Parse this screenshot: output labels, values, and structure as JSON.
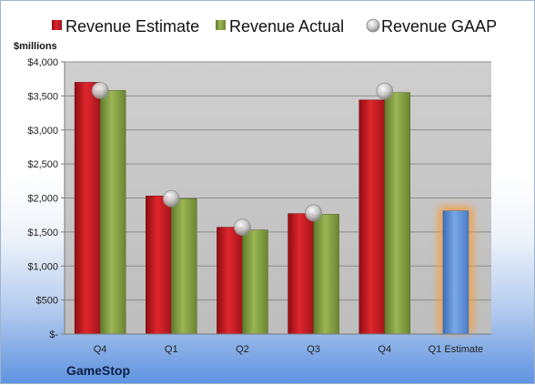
{
  "chart_data": {
    "type": "bar",
    "unit_label": "$millions",
    "company": "GameStop",
    "categories": [
      "Q4",
      "Q1",
      "Q2",
      "Q3",
      "Q4",
      "Q1 Estimate"
    ],
    "y_ticks": [
      "$-",
      "$500",
      "$1,000",
      "$1,500",
      "$2,000",
      "$2,500",
      "$3,000",
      "$3,500",
      "$4,000"
    ],
    "ylim": [
      0,
      4000
    ],
    "legend_position": "top",
    "series": [
      {
        "name": "Revenue Estimate",
        "type": "bar",
        "color": "#c0141b",
        "values": [
          3700,
          2030,
          1570,
          1770,
          3440,
          null
        ]
      },
      {
        "name": "Revenue Actual",
        "type": "bar",
        "color": "#7f9a3c",
        "values": [
          3580,
          1990,
          1530,
          1760,
          3550,
          null
        ]
      },
      {
        "name": "Revenue GAAP",
        "type": "marker",
        "color": "#b4b4b4",
        "values": [
          3580,
          1990,
          1570,
          1780,
          3570,
          null
        ]
      },
      {
        "name": "Q1 Estimate",
        "type": "bar",
        "color": "#5b8fd6",
        "highlight": "#f4a04a",
        "values": [
          null,
          null,
          null,
          null,
          null,
          1810
        ]
      }
    ]
  }
}
